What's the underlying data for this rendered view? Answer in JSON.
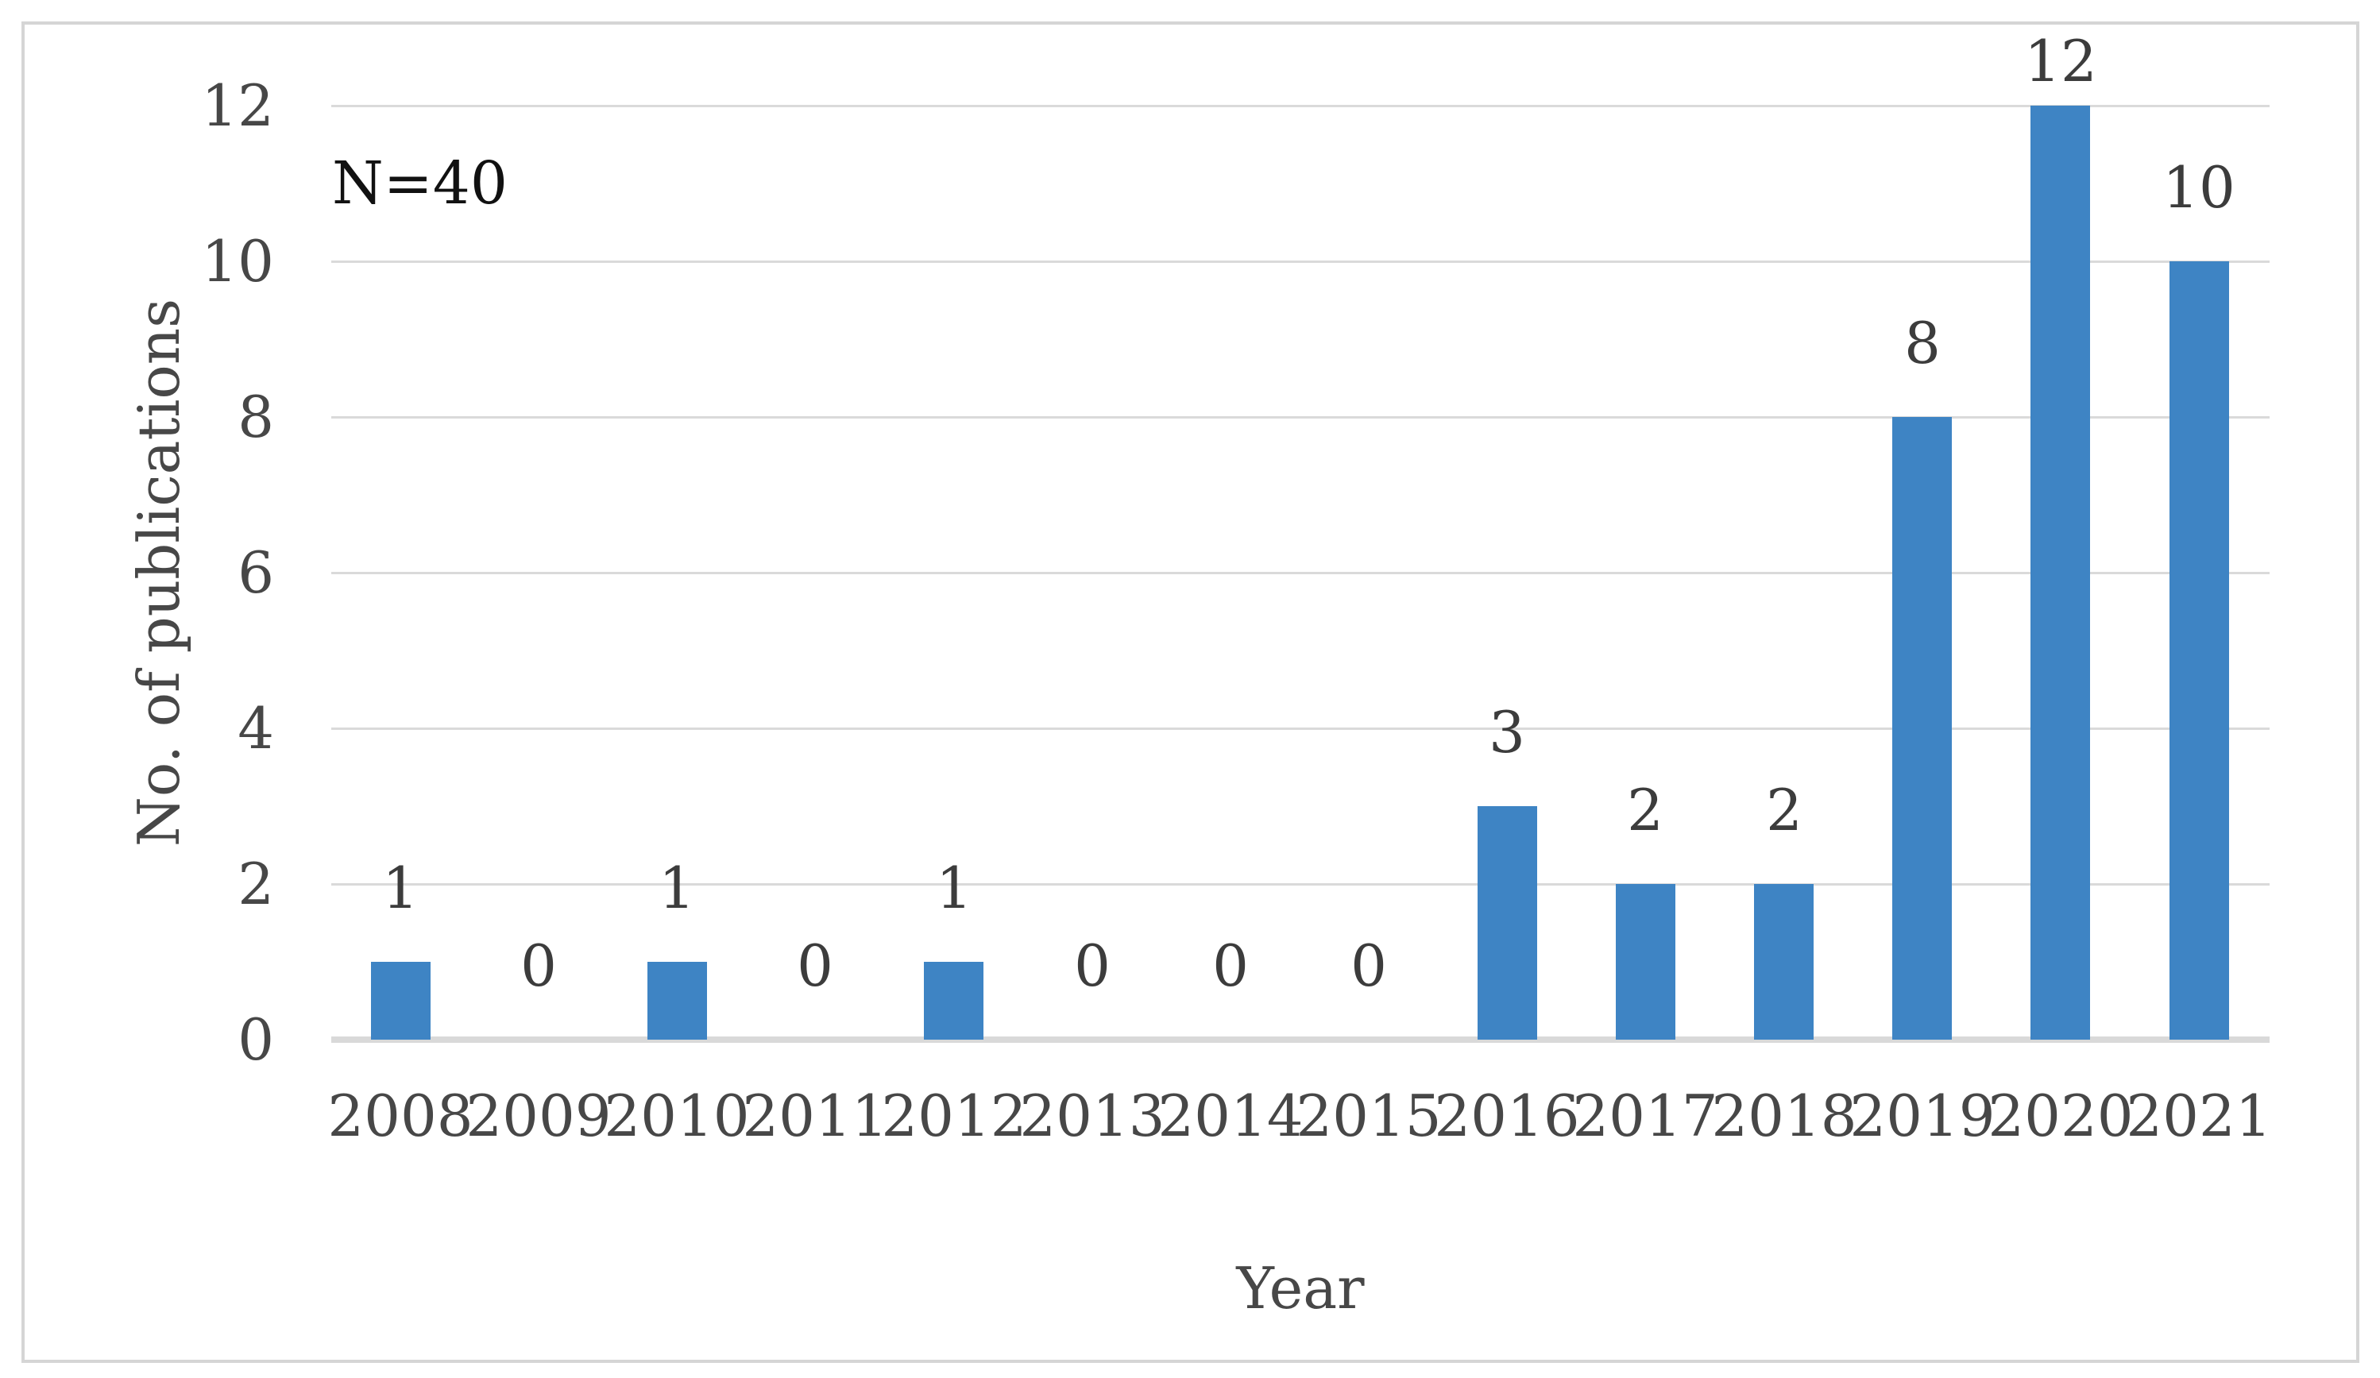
{
  "chart_data": {
    "type": "bar",
    "categories": [
      "2008",
      "2009",
      "2010",
      "2011",
      "2012",
      "2013",
      "2014",
      "2015",
      "2016",
      "2017",
      "2018",
      "2019",
      "2020",
      "2021"
    ],
    "values": [
      1,
      0,
      1,
      0,
      1,
      0,
      0,
      0,
      3,
      2,
      2,
      8,
      12,
      10
    ],
    "title": "",
    "xlabel": "Year",
    "ylabel": "No. of publications",
    "yticks": [
      0,
      2,
      4,
      6,
      8,
      10,
      12
    ],
    "ylim": [
      0,
      12
    ],
    "annotation": "N=40",
    "data_labels": true,
    "grid": "horizontal",
    "legend": false
  },
  "colors": {
    "bar": "#3E84C4",
    "gridline": "#DADADA",
    "axis_line": "#D9D9D9",
    "frame_border": "#D5D5D5",
    "tick_text": "#474747",
    "data_label_text": "#3C3C3C",
    "annotation_text": "#111111",
    "background": "#FFFFFF"
  }
}
